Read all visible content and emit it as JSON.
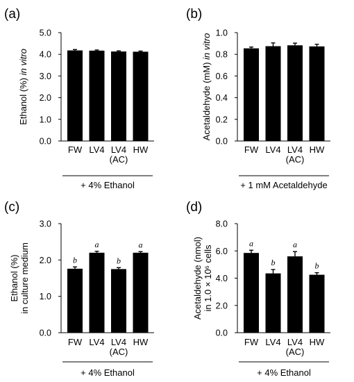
{
  "chart_data": [
    {
      "panel": "(a)",
      "type": "bar",
      "categories": [
        "FW",
        "LV4",
        "LV4\n(AC)",
        "HW"
      ],
      "values": [
        4.18,
        4.17,
        4.13,
        4.12
      ],
      "errors": [
        0.04,
        0.03,
        0.03,
        0.03
      ],
      "significance": [],
      "ylabel": "Ethanol (%) in vitro",
      "ylabel_parts": [
        "Ethanol (%) ",
        "in vitro"
      ],
      "yticks": [
        "0.0",
        "1.0",
        "2.0",
        "3.0",
        "4.0",
        "5.0"
      ],
      "ylim": [
        0,
        5
      ],
      "xlabel": "+ 4% Ethanol",
      "grid": false
    },
    {
      "panel": "(b)",
      "type": "bar",
      "categories": [
        "FW",
        "LV4",
        "LV4\n(AC)",
        "HW"
      ],
      "values": [
        0.855,
        0.875,
        0.883,
        0.873
      ],
      "errors": [
        0.012,
        0.03,
        0.02,
        0.02
      ],
      "significance": [],
      "ylabel": "Acetaldehyde (mM) in vitro",
      "ylabel_parts": [
        "Acetaldehyde (mM) ",
        "in vitro"
      ],
      "yticks": [
        "0.0",
        "0.2",
        "0.4",
        "0.6",
        "0.8",
        "1.0"
      ],
      "ylim": [
        0,
        1
      ],
      "xlabel": "+ 1 mM Acetaldehyde",
      "grid": false
    },
    {
      "panel": "(c)",
      "type": "bar",
      "categories": [
        "FW",
        "LV4",
        "LV4\n(AC)",
        "HW"
      ],
      "values": [
        1.76,
        2.2,
        1.75,
        2.2
      ],
      "errors": [
        0.05,
        0.04,
        0.04,
        0.03
      ],
      "significance": [
        "b",
        "a",
        "b",
        "a"
      ],
      "ylabel": "Ethanol (%)\nin culture medium",
      "yticks": [
        "0.0",
        "1.0",
        "2.0",
        "3.0"
      ],
      "ylim": [
        0,
        3
      ],
      "xlabel": "+ 4% Ethanol",
      "grid": false
    },
    {
      "panel": "(d)",
      "type": "bar",
      "categories": [
        "FW",
        "LV4",
        "LV4\n(AC)",
        "HW"
      ],
      "values": [
        5.85,
        4.35,
        5.6,
        4.25
      ],
      "errors": [
        0.2,
        0.28,
        0.35,
        0.15
      ],
      "significance": [
        "a",
        "b",
        "a",
        "b"
      ],
      "ylabel": "Acetaldehyde (nmol)\nin 1.0 × 10⁶ cells",
      "yticks": [
        "0.0",
        "2.0",
        "4.0",
        "6.0",
        "8.0"
      ],
      "ylim": [
        0,
        8
      ],
      "xlabel": "+ 4% Ethanol",
      "grid": false
    }
  ],
  "colors": {
    "bar": "#000000",
    "axis": "#000000"
  }
}
